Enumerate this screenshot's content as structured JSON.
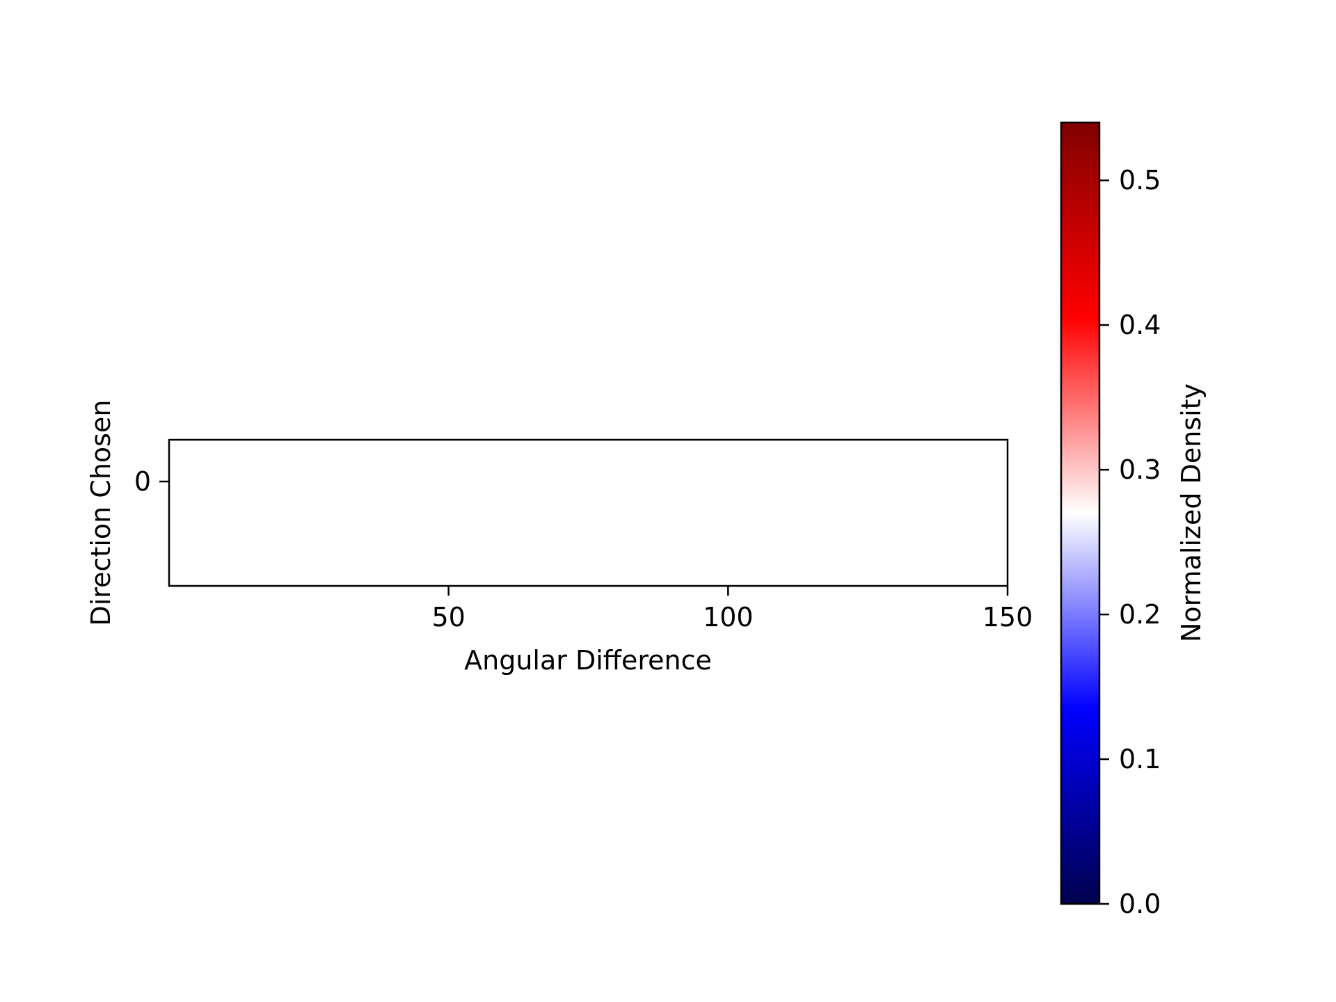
{
  "chart_data": {
    "type": "heatmap",
    "title": "",
    "xlabel": "Angular Difference",
    "ylabel": "Direction Chosen",
    "x_ticks": [
      50,
      100,
      150
    ],
    "y_ticks": [
      0
    ],
    "xlim": [
      0,
      150
    ],
    "ylim": [
      -0.5,
      0.2
    ],
    "grid": false,
    "cells": [],
    "colorbar": {
      "label": "Normalized Density",
      "colormap": "seismic",
      "range": [
        0.0,
        0.54
      ],
      "ticks": [
        0.0,
        0.1,
        0.2,
        0.3,
        0.4,
        0.5
      ],
      "tick_labels": [
        "0.0",
        "0.1",
        "0.2",
        "0.3",
        "0.4",
        "0.5"
      ],
      "colors": [
        "#00004d",
        "#0000ff",
        "#ffffff",
        "#ff0000",
        "#800000"
      ]
    }
  }
}
